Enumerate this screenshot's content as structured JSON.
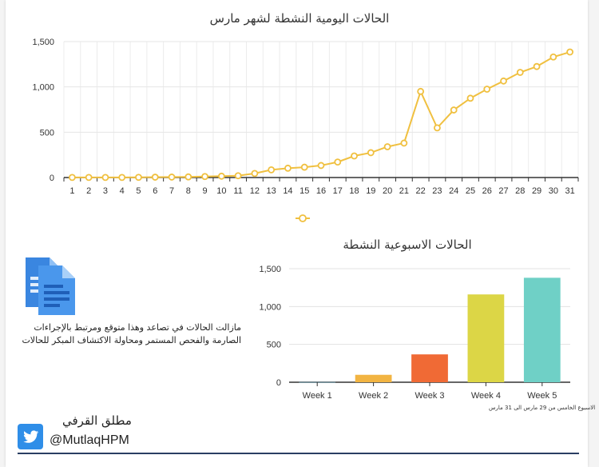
{
  "chart_data": [
    {
      "type": "line",
      "title": "الحالات اليومية النشطة لشهر مارس",
      "x": [
        1,
        2,
        3,
        4,
        5,
        6,
        7,
        8,
        9,
        10,
        11,
        12,
        13,
        14,
        15,
        16,
        17,
        18,
        19,
        20,
        21,
        22,
        23,
        24,
        25,
        26,
        27,
        28,
        29,
        30,
        31
      ],
      "series": [
        {
          "values": [
            1,
            1,
            1,
            1,
            2,
            4,
            5,
            7,
            11,
            15,
            20,
            45,
            85,
            103,
            114,
            133,
            171,
            238,
            274,
            340,
            380,
            950,
            548,
            745,
            875,
            975,
            1065,
            1160,
            1225,
            1330,
            1385
          ],
          "color": "#f0c040"
        }
      ],
      "ylim": [
        0,
        1500
      ],
      "yticks": [
        0,
        500,
        1000,
        1500
      ],
      "ytick_labels": [
        "0",
        "500",
        "1,000",
        "1,500"
      ],
      "grid": true,
      "legend": "bottom-center",
      "xlabel": "",
      "ylabel": ""
    },
    {
      "type": "bar",
      "title": "الحالات الاسبوعية النشطة",
      "categories": [
        "Week 1",
        "Week 2",
        "Week 3",
        "Week 4",
        "Week 5"
      ],
      "values": [
        2,
        98,
        368,
        1160,
        1380
      ],
      "colors": [
        "#6ec6e6",
        "#f2b442",
        "#f06a35",
        "#dcd646",
        "#6fd0c6"
      ],
      "ylim": [
        0,
        1500
      ],
      "yticks": [
        0,
        500,
        1000,
        1500
      ],
      "ytick_labels": [
        "0",
        "500",
        "1,000",
        "1,500"
      ],
      "grid": true,
      "xlabel": "",
      "ylabel": "",
      "footnote": "الاسبوع الخامس من 29 مارس الى 31 مارس"
    }
  ],
  "note": {
    "text": "مازالت الحالات في تصاعد وهذا متوقع ومرتبط بالإجراءات الصارمة والفحص المستمر ومحاولة الاكتشاف المبكر للحالات",
    "icon": "documents-icon"
  },
  "author": {
    "name": "مطلق القرفي",
    "handle": "@MutlaqHPM",
    "icon": "twitter-bird-icon",
    "brand_color": "#2f8ee8"
  }
}
